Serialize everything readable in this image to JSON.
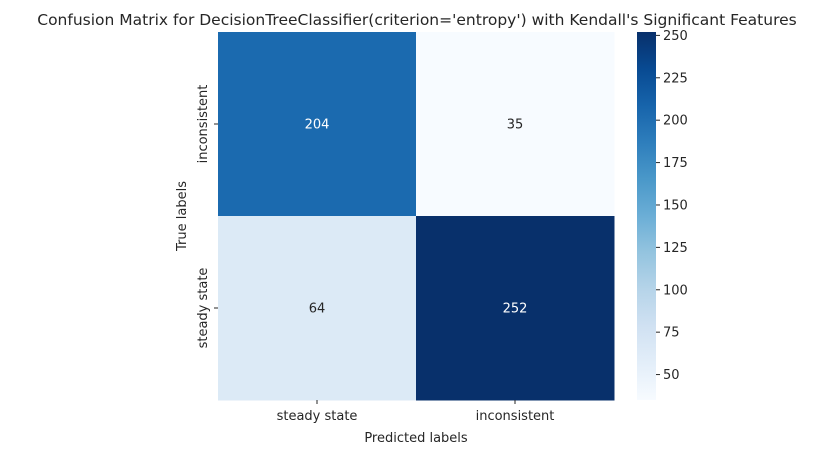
{
  "chart_data": {
    "type": "heatmap",
    "title": "Confusion Matrix for DecisionTreeClassifier(criterion='entropy') with Kendall's Significant Features",
    "xlabel": "Predicted labels",
    "ylabel": "True labels",
    "x_categories": [
      "steady state",
      "inconsistent"
    ],
    "y_categories": [
      "inconsistent",
      "steady state"
    ],
    "matrix": [
      [
        204,
        35
      ],
      [
        64,
        252
      ]
    ],
    "colormap": "Blues",
    "vmin": 35,
    "vmax": 252,
    "colorbar_ticks": [
      50,
      75,
      100,
      125,
      150,
      175,
      200,
      225,
      250
    ],
    "annotation_colors": {
      "light": "#ffffff",
      "dark": "#262626"
    },
    "text_color": "#262626"
  }
}
